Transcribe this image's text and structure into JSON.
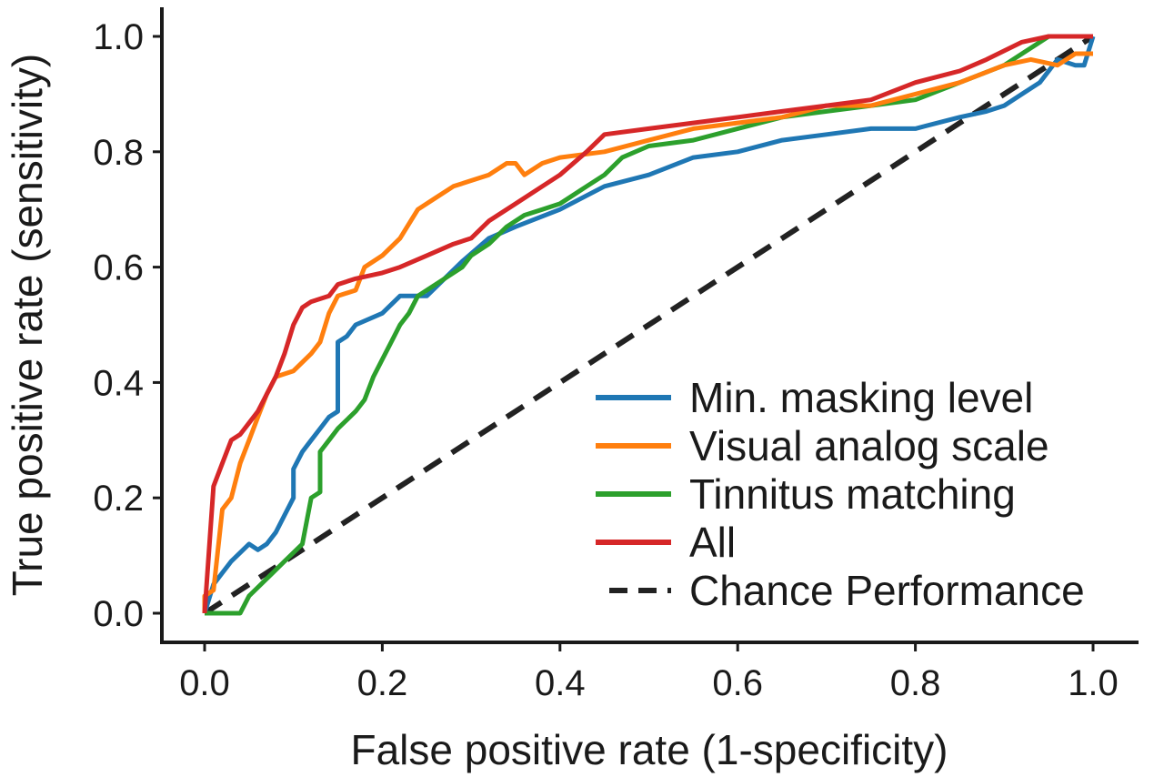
{
  "chart_data": {
    "type": "line",
    "xlabel": "False positive rate (1-specificity)",
    "ylabel": "True positive rate (sensitivity)",
    "xlim": [
      0.0,
      1.0
    ],
    "ylim": [
      0.0,
      1.0
    ],
    "x_ticks": [
      "0.0",
      "0.2",
      "0.4",
      "0.6",
      "0.8",
      "1.0"
    ],
    "y_ticks": [
      "0.0",
      "0.2",
      "0.4",
      "0.6",
      "0.8",
      "1.0"
    ],
    "grid": false,
    "legend_position": "bottom-right",
    "series": [
      {
        "name": "Min. masking level",
        "color": "#1f77b4",
        "points": [
          [
            0.0,
            0.0
          ],
          [
            0.01,
            0.05
          ],
          [
            0.02,
            0.07
          ],
          [
            0.03,
            0.09
          ],
          [
            0.05,
            0.12
          ],
          [
            0.06,
            0.11
          ],
          [
            0.07,
            0.12
          ],
          [
            0.08,
            0.14
          ],
          [
            0.09,
            0.17
          ],
          [
            0.1,
            0.2
          ],
          [
            0.1,
            0.25
          ],
          [
            0.11,
            0.28
          ],
          [
            0.12,
            0.3
          ],
          [
            0.13,
            0.32
          ],
          [
            0.14,
            0.34
          ],
          [
            0.15,
            0.35
          ],
          [
            0.15,
            0.47
          ],
          [
            0.16,
            0.48
          ],
          [
            0.17,
            0.5
          ],
          [
            0.2,
            0.52
          ],
          [
            0.22,
            0.55
          ],
          [
            0.25,
            0.55
          ],
          [
            0.27,
            0.58
          ],
          [
            0.29,
            0.61
          ],
          [
            0.32,
            0.65
          ],
          [
            0.35,
            0.67
          ],
          [
            0.4,
            0.7
          ],
          [
            0.45,
            0.74
          ],
          [
            0.5,
            0.76
          ],
          [
            0.55,
            0.79
          ],
          [
            0.6,
            0.8
          ],
          [
            0.65,
            0.82
          ],
          [
            0.7,
            0.83
          ],
          [
            0.75,
            0.84
          ],
          [
            0.8,
            0.84
          ],
          [
            0.85,
            0.86
          ],
          [
            0.88,
            0.87
          ],
          [
            0.9,
            0.88
          ],
          [
            0.92,
            0.9
          ],
          [
            0.94,
            0.92
          ],
          [
            0.96,
            0.96
          ],
          [
            0.98,
            0.95
          ],
          [
            0.99,
            0.95
          ],
          [
            1.0,
            1.0
          ]
        ]
      },
      {
        "name": "Visual analog scale",
        "color": "#ff7f0e",
        "points": [
          [
            0.0,
            0.0
          ],
          [
            0.0,
            0.03
          ],
          [
            0.01,
            0.04
          ],
          [
            0.02,
            0.18
          ],
          [
            0.03,
            0.2
          ],
          [
            0.04,
            0.26
          ],
          [
            0.05,
            0.3
          ],
          [
            0.06,
            0.34
          ],
          [
            0.07,
            0.38
          ],
          [
            0.08,
            0.41
          ],
          [
            0.1,
            0.42
          ],
          [
            0.12,
            0.45
          ],
          [
            0.13,
            0.47
          ],
          [
            0.14,
            0.52
          ],
          [
            0.15,
            0.55
          ],
          [
            0.17,
            0.56
          ],
          [
            0.18,
            0.6
          ],
          [
            0.2,
            0.62
          ],
          [
            0.22,
            0.65
          ],
          [
            0.24,
            0.7
          ],
          [
            0.26,
            0.72
          ],
          [
            0.28,
            0.74
          ],
          [
            0.3,
            0.75
          ],
          [
            0.32,
            0.76
          ],
          [
            0.34,
            0.78
          ],
          [
            0.35,
            0.78
          ],
          [
            0.36,
            0.76
          ],
          [
            0.38,
            0.78
          ],
          [
            0.4,
            0.79
          ],
          [
            0.45,
            0.8
          ],
          [
            0.5,
            0.82
          ],
          [
            0.55,
            0.84
          ],
          [
            0.6,
            0.85
          ],
          [
            0.65,
            0.86
          ],
          [
            0.7,
            0.88
          ],
          [
            0.75,
            0.88
          ],
          [
            0.8,
            0.9
          ],
          [
            0.85,
            0.92
          ],
          [
            0.9,
            0.95
          ],
          [
            0.93,
            0.96
          ],
          [
            0.96,
            0.95
          ],
          [
            0.98,
            0.97
          ],
          [
            1.0,
            0.97
          ]
        ]
      },
      {
        "name": "Tinnitus matching",
        "color": "#2ca02c",
        "points": [
          [
            0.0,
            0.0
          ],
          [
            0.04,
            0.0
          ],
          [
            0.05,
            0.03
          ],
          [
            0.07,
            0.06
          ],
          [
            0.09,
            0.09
          ],
          [
            0.11,
            0.12
          ],
          [
            0.12,
            0.2
          ],
          [
            0.13,
            0.21
          ],
          [
            0.13,
            0.28
          ],
          [
            0.14,
            0.3
          ],
          [
            0.15,
            0.32
          ],
          [
            0.17,
            0.35
          ],
          [
            0.18,
            0.37
          ],
          [
            0.19,
            0.41
          ],
          [
            0.2,
            0.44
          ],
          [
            0.21,
            0.47
          ],
          [
            0.22,
            0.5
          ],
          [
            0.23,
            0.52
          ],
          [
            0.24,
            0.55
          ],
          [
            0.25,
            0.56
          ],
          [
            0.27,
            0.58
          ],
          [
            0.29,
            0.6
          ],
          [
            0.3,
            0.62
          ],
          [
            0.32,
            0.64
          ],
          [
            0.34,
            0.67
          ],
          [
            0.36,
            0.69
          ],
          [
            0.38,
            0.7
          ],
          [
            0.4,
            0.71
          ],
          [
            0.43,
            0.74
          ],
          [
            0.45,
            0.76
          ],
          [
            0.47,
            0.79
          ],
          [
            0.5,
            0.81
          ],
          [
            0.55,
            0.82
          ],
          [
            0.6,
            0.84
          ],
          [
            0.65,
            0.86
          ],
          [
            0.7,
            0.87
          ],
          [
            0.75,
            0.88
          ],
          [
            0.8,
            0.89
          ],
          [
            0.85,
            0.92
          ],
          [
            0.9,
            0.95
          ],
          [
            0.95,
            1.0
          ],
          [
            1.0,
            1.0
          ]
        ]
      },
      {
        "name": "All",
        "color": "#d62728",
        "points": [
          [
            0.0,
            0.0
          ],
          [
            0.01,
            0.22
          ],
          [
            0.02,
            0.26
          ],
          [
            0.03,
            0.3
          ],
          [
            0.04,
            0.31
          ],
          [
            0.05,
            0.33
          ],
          [
            0.06,
            0.35
          ],
          [
            0.07,
            0.38
          ],
          [
            0.08,
            0.41
          ],
          [
            0.09,
            0.45
          ],
          [
            0.1,
            0.5
          ],
          [
            0.11,
            0.53
          ],
          [
            0.12,
            0.54
          ],
          [
            0.14,
            0.55
          ],
          [
            0.15,
            0.57
          ],
          [
            0.17,
            0.58
          ],
          [
            0.2,
            0.59
          ],
          [
            0.22,
            0.6
          ],
          [
            0.25,
            0.62
          ],
          [
            0.28,
            0.64
          ],
          [
            0.3,
            0.65
          ],
          [
            0.32,
            0.68
          ],
          [
            0.35,
            0.71
          ],
          [
            0.38,
            0.74
          ],
          [
            0.4,
            0.76
          ],
          [
            0.43,
            0.8
          ],
          [
            0.45,
            0.83
          ],
          [
            0.5,
            0.84
          ],
          [
            0.55,
            0.85
          ],
          [
            0.6,
            0.86
          ],
          [
            0.65,
            0.87
          ],
          [
            0.7,
            0.88
          ],
          [
            0.75,
            0.89
          ],
          [
            0.8,
            0.92
          ],
          [
            0.85,
            0.94
          ],
          [
            0.88,
            0.96
          ],
          [
            0.92,
            0.99
          ],
          [
            0.95,
            1.0
          ],
          [
            1.0,
            1.0
          ]
        ]
      },
      {
        "name": "Chance Performance",
        "color": "#222222",
        "dashed": true,
        "points": [
          [
            0.0,
            0.0
          ],
          [
            1.0,
            1.0
          ]
        ]
      }
    ]
  }
}
